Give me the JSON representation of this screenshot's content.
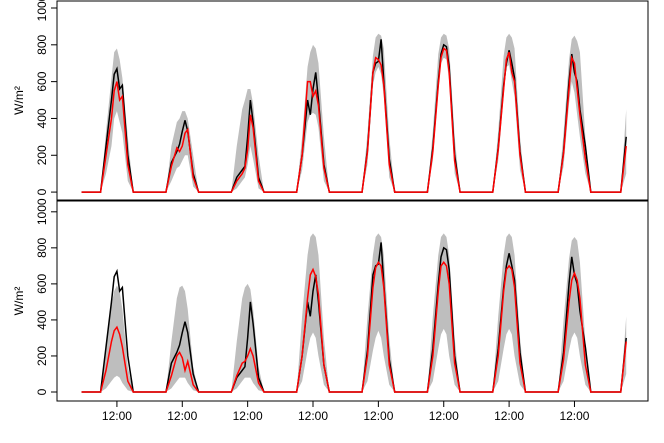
{
  "chart_data": [
    {
      "type": "line",
      "ylabel": "W/m²",
      "xlim": [
        -10,
        207
      ],
      "ylim": [
        -43,
        1038
      ],
      "yticks": [
        0,
        200,
        400,
        600,
        800,
        1000
      ],
      "x": [
        -1,
        6,
        8,
        10,
        11,
        12,
        13,
        14,
        16,
        18,
        30,
        32,
        34,
        35,
        36,
        37,
        38,
        40,
        42,
        54,
        56,
        58,
        59,
        60,
        61,
        62,
        64,
        66,
        78,
        80,
        82,
        83,
        84,
        85,
        86,
        88,
        90,
        102,
        104,
        106,
        107,
        108,
        109,
        110,
        112,
        114,
        126,
        128,
        130,
        131,
        132,
        133,
        134,
        136,
        138,
        150,
        152,
        154,
        155,
        156,
        157,
        158,
        160,
        162,
        174,
        176,
        178,
        179,
        180,
        181,
        182,
        184,
        186,
        197,
        199
      ],
      "band": {
        "color": "#bebebe",
        "upper": [
          0,
          0,
          330,
          620,
          760,
          780,
          720,
          620,
          300,
          0,
          0,
          250,
          380,
          400,
          440,
          440,
          400,
          200,
          0,
          0,
          250,
          450,
          500,
          560,
          560,
          480,
          200,
          0,
          0,
          300,
          680,
          760,
          800,
          780,
          700,
          300,
          0,
          0,
          320,
          740,
          840,
          860,
          850,
          780,
          300,
          0,
          0,
          330,
          750,
          840,
          860,
          850,
          780,
          300,
          0,
          0,
          330,
          740,
          840,
          860,
          840,
          780,
          300,
          0,
          0,
          320,
          720,
          830,
          850,
          820,
          760,
          300,
          0,
          0,
          450
        ],
        "lower": [
          0,
          0,
          100,
          250,
          400,
          440,
          380,
          320,
          60,
          0,
          0,
          60,
          130,
          140,
          170,
          200,
          200,
          30,
          0,
          0,
          20,
          60,
          80,
          150,
          250,
          180,
          20,
          0,
          0,
          120,
          380,
          420,
          430,
          420,
          350,
          60,
          0,
          0,
          150,
          580,
          650,
          680,
          640,
          520,
          80,
          0,
          0,
          170,
          560,
          700,
          730,
          720,
          600,
          100,
          0,
          0,
          170,
          520,
          680,
          690,
          600,
          520,
          120,
          0,
          0,
          140,
          480,
          600,
          540,
          420,
          300,
          100,
          0,
          0,
          100
        ]
      },
      "series": [
        {
          "color": "#000000",
          "values": [
            0,
            0,
            250,
            500,
            640,
            670,
            560,
            580,
            200,
            0,
            0,
            160,
            220,
            260,
            330,
            390,
            330,
            100,
            0,
            0,
            80,
            120,
            140,
            300,
            500,
            380,
            80,
            0,
            0,
            200,
            500,
            420,
            560,
            650,
            500,
            150,
            0,
            0,
            230,
            650,
            700,
            710,
            830,
            600,
            180,
            0,
            0,
            240,
            600,
            750,
            800,
            790,
            680,
            200,
            0,
            0,
            240,
            580,
            700,
            770,
            700,
            620,
            220,
            0,
            0,
            220,
            600,
            750,
            650,
            600,
            450,
            250,
            0,
            0,
            300
          ]
        },
        {
          "color": "#ff0000",
          "values": [
            0,
            0,
            200,
            400,
            550,
            600,
            500,
            520,
            150,
            0,
            0,
            140,
            240,
            220,
            250,
            320,
            340,
            80,
            0,
            0,
            60,
            100,
            130,
            230,
            420,
            350,
            60,
            0,
            0,
            200,
            600,
            600,
            520,
            550,
            470,
            130,
            0,
            0,
            220,
            650,
            730,
            720,
            690,
            580,
            150,
            0,
            0,
            220,
            580,
            730,
            780,
            770,
            650,
            170,
            0,
            0,
            230,
            560,
            720,
            760,
            650,
            600,
            200,
            0,
            0,
            210,
            560,
            730,
            700,
            560,
            420,
            180,
            0,
            0,
            250
          ]
        }
      ]
    },
    {
      "type": "line",
      "ylabel": "W/m²",
      "xlim": [
        -10,
        207
      ],
      "ylim": [
        -50,
        1060
      ],
      "yticks": [
        0,
        200,
        400,
        600,
        800,
        1000
      ],
      "xticks": [
        {
          "value": 12,
          "label": "12:00"
        },
        {
          "value": 36,
          "label": "12:00"
        },
        {
          "value": 60,
          "label": "12:00"
        },
        {
          "value": 84,
          "label": "12:00"
        },
        {
          "value": 108,
          "label": "12:00"
        },
        {
          "value": 132,
          "label": "12:00"
        },
        {
          "value": 156,
          "label": "12:00"
        },
        {
          "value": 180,
          "label": "12:00"
        }
      ],
      "x": [
        -1,
        6,
        8,
        10,
        11,
        12,
        13,
        14,
        16,
        18,
        30,
        32,
        34,
        35,
        36,
        37,
        38,
        40,
        42,
        54,
        56,
        58,
        59,
        60,
        61,
        62,
        64,
        66,
        78,
        80,
        82,
        83,
        84,
        85,
        86,
        88,
        90,
        102,
        104,
        106,
        107,
        108,
        109,
        110,
        112,
        114,
        126,
        128,
        130,
        131,
        132,
        133,
        134,
        136,
        138,
        150,
        152,
        154,
        155,
        156,
        157,
        158,
        160,
        162,
        174,
        176,
        178,
        179,
        180,
        181,
        182,
        184,
        186,
        197,
        199
      ],
      "band": {
        "color": "#bebebe",
        "upper": [
          0,
          0,
          260,
          480,
          560,
          590,
          560,
          460,
          140,
          0,
          0,
          280,
          520,
          580,
          590,
          560,
          460,
          140,
          0,
          0,
          280,
          520,
          580,
          600,
          570,
          460,
          140,
          0,
          0,
          420,
          760,
          860,
          880,
          860,
          760,
          300,
          0,
          0,
          420,
          760,
          860,
          880,
          860,
          760,
          300,
          0,
          0,
          420,
          760,
          860,
          880,
          860,
          760,
          300,
          0,
          0,
          420,
          760,
          860,
          880,
          860,
          760,
          300,
          0,
          0,
          400,
          740,
          840,
          860,
          840,
          720,
          280,
          0,
          0,
          420
        ],
        "lower": [
          0,
          0,
          20,
          60,
          80,
          90,
          80,
          50,
          10,
          0,
          0,
          20,
          60,
          80,
          80,
          80,
          50,
          10,
          0,
          0,
          20,
          60,
          80,
          80,
          80,
          50,
          10,
          0,
          0,
          60,
          230,
          300,
          330,
          300,
          200,
          40,
          0,
          0,
          60,
          230,
          300,
          340,
          300,
          200,
          40,
          0,
          0,
          60,
          240,
          320,
          350,
          320,
          200,
          40,
          0,
          0,
          60,
          240,
          320,
          350,
          320,
          200,
          40,
          0,
          0,
          60,
          230,
          300,
          330,
          300,
          200,
          40,
          0,
          0,
          100
        ]
      },
      "series": [
        {
          "color": "#000000",
          "values": [
            0,
            0,
            250,
            500,
            640,
            670,
            560,
            580,
            200,
            0,
            0,
            160,
            220,
            260,
            330,
            390,
            330,
            100,
            0,
            0,
            80,
            120,
            140,
            300,
            500,
            380,
            80,
            0,
            0,
            200,
            500,
            420,
            560,
            650,
            500,
            150,
            0,
            0,
            230,
            650,
            700,
            710,
            830,
            600,
            180,
            0,
            0,
            240,
            600,
            750,
            800,
            790,
            680,
            200,
            0,
            0,
            240,
            580,
            700,
            770,
            700,
            620,
            220,
            0,
            0,
            220,
            600,
            750,
            650,
            600,
            450,
            250,
            0,
            0,
            300
          ]
        },
        {
          "color": "#ff0000",
          "values": [
            0,
            0,
            120,
            280,
            340,
            360,
            320,
            250,
            60,
            0,
            0,
            90,
            200,
            220,
            190,
            120,
            170,
            40,
            0,
            0,
            90,
            160,
            170,
            200,
            240,
            200,
            50,
            0,
            0,
            200,
            520,
            650,
            680,
            640,
            540,
            150,
            0,
            0,
            200,
            580,
            690,
            720,
            700,
            580,
            150,
            0,
            0,
            200,
            560,
            700,
            720,
            700,
            600,
            160,
            0,
            0,
            200,
            560,
            680,
            700,
            680,
            580,
            160,
            0,
            0,
            180,
            500,
            620,
            660,
            620,
            520,
            150,
            0,
            0,
            280
          ]
        }
      ]
    }
  ]
}
